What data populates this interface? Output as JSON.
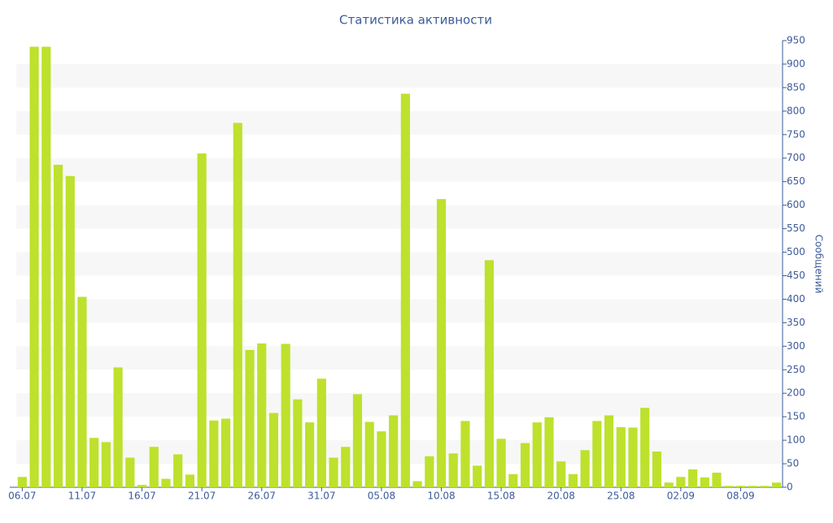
{
  "chart_data": {
    "type": "bar",
    "title": "Статистика активности",
    "y_axis_label": "Сообщений",
    "color": "#bde12d",
    "grid": "bands",
    "y_axis_side": "right",
    "categories": [
      "06.07",
      null,
      null,
      null,
      null,
      "11.07",
      null,
      null,
      null,
      null,
      "16.07",
      null,
      null,
      null,
      null,
      "21.07",
      null,
      null,
      null,
      null,
      "26.07",
      null,
      null,
      null,
      null,
      "31.07",
      null,
      null,
      null,
      null,
      "05.08",
      null,
      null,
      null,
      null,
      "10.08",
      null,
      null,
      null,
      null,
      "15.08",
      null,
      null,
      null,
      null,
      "20.08",
      null,
      null,
      null,
      null,
      "25.08",
      null,
      null,
      null,
      null,
      "02.09",
      null,
      null,
      null,
      null,
      "08.09",
      null,
      null,
      null
    ],
    "values": [
      22,
      937,
      937,
      686,
      662,
      405,
      105,
      96,
      255,
      63,
      5,
      86,
      18,
      70,
      27,
      710,
      142,
      146,
      775,
      292,
      306,
      158,
      305,
      187,
      138,
      231,
      63,
      86,
      198,
      139,
      119,
      153,
      837,
      13,
      66,
      613,
      72,
      141,
      46,
      483,
      103,
      28,
      94,
      138,
      149,
      55,
      28,
      79,
      141,
      153,
      128,
      127,
      169,
      76,
      10,
      22,
      38,
      21,
      31,
      3,
      3,
      3,
      3,
      10
    ],
    "ylim": [
      0,
      950
    ],
    "yticks": [
      0,
      50,
      100,
      150,
      200,
      250,
      300,
      350,
      400,
      450,
      500,
      550,
      600,
      650,
      700,
      750,
      800,
      850,
      900,
      950
    ]
  }
}
